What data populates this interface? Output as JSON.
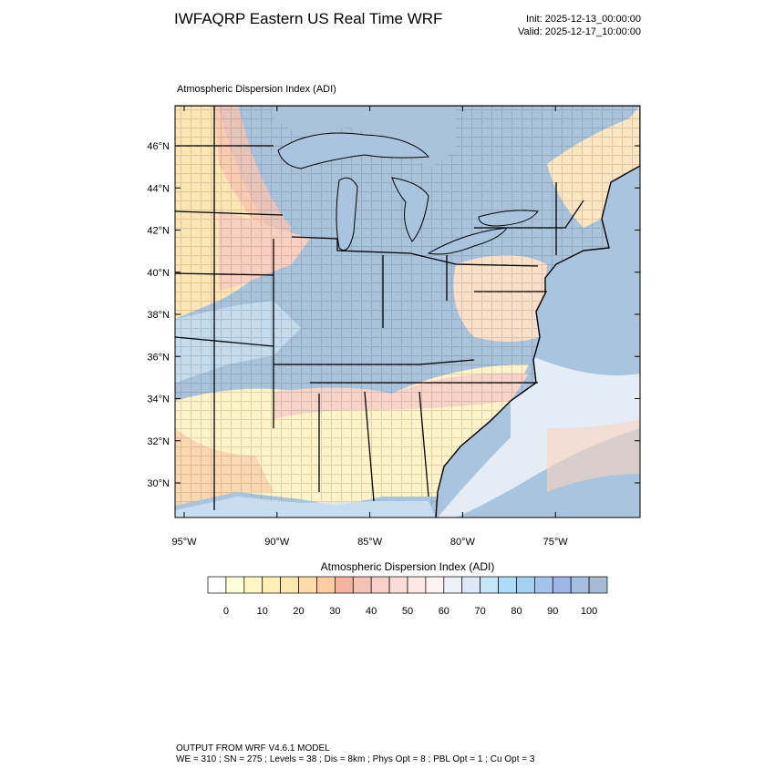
{
  "title": "IWFAQRP Eastern US Real Time WRF",
  "init": "Init: 2025-12-13_00:00:00",
  "valid": "Valid: 2025-12-17_10:00:00",
  "panel_label": "Atmospheric Dispersion Index   (ADI)",
  "map": {
    "lat_labels": [
      "46°N",
      "44°N",
      "42°N",
      "40°N",
      "38°N",
      "36°N",
      "34°N",
      "32°N",
      "30°N"
    ],
    "lon_labels": [
      "95°W",
      "90°W",
      "85°W",
      "80°W",
      "75°W"
    ]
  },
  "colorbar": {
    "title": "Atmospheric Dispersion Index  (ADI)",
    "colors": [
      "#ffffff",
      "#ffffd8",
      "#fff8c4",
      "#fff0b4",
      "#ffe8ac",
      "#fddcaa",
      "#fbcca0",
      "#f6b4a0",
      "#f5c2b8",
      "#f8d0c8",
      "#fbdcd6",
      "#fde8e4",
      "#fff2f2",
      "#eef0fc",
      "#dce8f8",
      "#c4e6f8",
      "#acdcf6",
      "#a4d0f2",
      "#a4c4ee",
      "#9cb6e8",
      "#a6bee0",
      "#a6bcd6"
    ],
    "labels": [
      "0",
      "10",
      "20",
      "30",
      "40",
      "50",
      "60",
      "70",
      "80",
      "90",
      "100"
    ]
  },
  "footer": [
    "OUTPUT FROM WRF V4.6.1 MODEL",
    "WE = 310 ; SN = 275 ; Levels = 38 ; Dis = 8km ; Phys Opt = 8 ; PBL Opt = 1 ; Cu Opt = 3"
  ]
}
